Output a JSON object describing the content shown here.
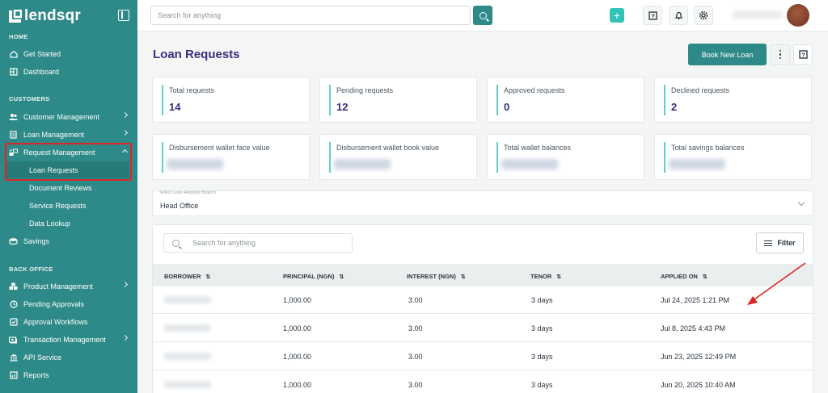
{
  "brand": {
    "name": "lendsqr"
  },
  "sidebar": {
    "sections": {
      "home": "HOME",
      "customers": "CUSTOMERS",
      "back_office": "BACK OFFICE"
    },
    "items": [
      {
        "label": "Get Started"
      },
      {
        "label": "Dashboard"
      },
      {
        "label": "Customer Management"
      },
      {
        "label": "Loan Management"
      },
      {
        "label": "Request Management"
      },
      {
        "label": "Loan Requests"
      },
      {
        "label": "Document Reviews"
      },
      {
        "label": "Service Requests"
      },
      {
        "label": "Data Lookup"
      },
      {
        "label": "Savings"
      },
      {
        "label": "Product Management"
      },
      {
        "label": "Pending Approvals"
      },
      {
        "label": "Approval Workflows"
      },
      {
        "label": "Transaction Management"
      },
      {
        "label": "API Service"
      },
      {
        "label": "Reports"
      }
    ]
  },
  "header": {
    "search_placeholder": "Search for anything"
  },
  "page": {
    "title": "Loan Requests",
    "book_button": "Book New Loan"
  },
  "stats": [
    {
      "label": "Total requests",
      "value": "14"
    },
    {
      "label": "Pending requests",
      "value": "12"
    },
    {
      "label": "Approved requests",
      "value": "0"
    },
    {
      "label": "Declined requests",
      "value": "2"
    }
  ],
  "balances": [
    {
      "label": "Disbursement wallet face value"
    },
    {
      "label": "Disbursement wallet book value"
    },
    {
      "label": "Total wallet balances"
    },
    {
      "label": "Total savings balances"
    }
  ],
  "branch": {
    "label": "Select Loan Request Branch",
    "value": "Head Office"
  },
  "table": {
    "search_placeholder": "Search for anything",
    "filter_label": "Filter",
    "columns": [
      "BORROWER",
      "PRINCIPAL (NGN)",
      "INTEREST (NGN)",
      "TENOR",
      "APPLIED ON"
    ],
    "rows": [
      {
        "principal": "1,000.00",
        "interest": "3.00",
        "tenor": "3 days",
        "applied_on": "Jul 24, 2025 1:21 PM"
      },
      {
        "principal": "1,000.00",
        "interest": "3.00",
        "tenor": "3 days",
        "applied_on": "Jul 8, 2025 4:43 PM"
      },
      {
        "principal": "1,000.00",
        "interest": "3.00",
        "tenor": "3 days",
        "applied_on": "Jun 23, 2025 12:49 PM"
      },
      {
        "principal": "1,000.00",
        "interest": "3.00",
        "tenor": "3 days",
        "applied_on": "Jun 20, 2025 10:40 AM"
      }
    ]
  },
  "colors": {
    "sidebar": "#2e8a88",
    "accent": "#2e8a88",
    "title": "#3a2f7a",
    "highlight": "#e02424",
    "stat_bar": "#5ed2c8"
  }
}
